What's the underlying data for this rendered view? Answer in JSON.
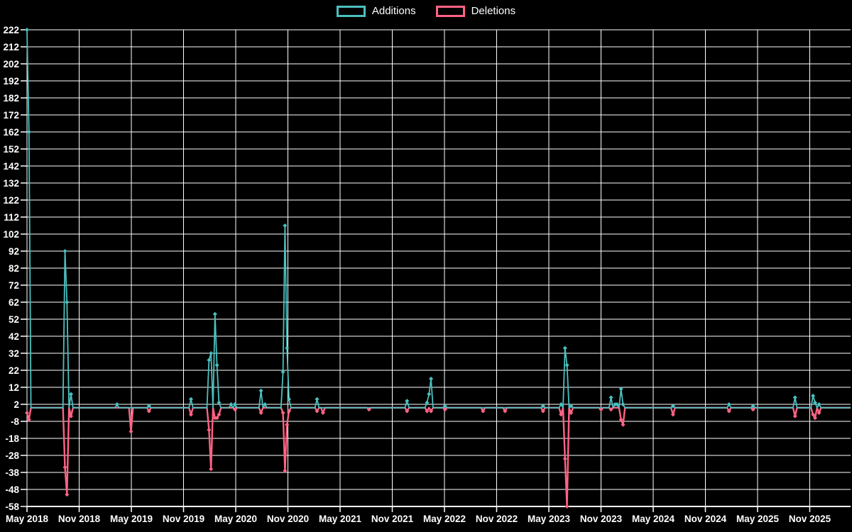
{
  "legend": {
    "items": [
      {
        "label": "Additions",
        "color": "#4bc0c0"
      },
      {
        "label": "Deletions",
        "color": "#ff6384"
      }
    ]
  },
  "colors": {
    "background": "#000000",
    "grid": "#ffffff",
    "text": "#ffffff",
    "additions": "#4bc0c0",
    "deletions": "#ff6384"
  },
  "chart_data": {
    "type": "line",
    "title": "",
    "legend_position": "top",
    "grid": true,
    "x_axis": {
      "tick_labels": [
        "May 2018",
        "Nov 2018",
        "May 2019",
        "Nov 2019",
        "May 2020",
        "Nov 2020",
        "May 2021",
        "Nov 2021",
        "May 2022",
        "Nov 2022",
        "May 2023",
        "Nov 2023",
        "May 2024",
        "Nov 2024",
        "May 2025",
        "Nov 2025"
      ],
      "tick_interval": "6 months",
      "point_interval": "1 week"
    },
    "y_axis": {
      "min": -58,
      "max": 222,
      "step": 10,
      "tick_labels": [
        "222",
        "212",
        "202",
        "192",
        "182",
        "172",
        "162",
        "152",
        "142",
        "132",
        "122",
        "112",
        "102",
        "92",
        "82",
        "72",
        "62",
        "52",
        "42",
        "32",
        "22",
        "12",
        "2",
        "-8",
        "-18",
        "-28",
        "-38",
        "-48",
        "-58"
      ]
    },
    "weeks_total": 412,
    "baseline_value": 0,
    "spike_key": "week index from first data point (early May 2018); all unlisted weeks are 0",
    "series": [
      {
        "name": "Additions",
        "color": "#4bc0c0",
        "spikes": {
          "0": 222,
          "1": 162,
          "19": 92,
          "20": 62,
          "22": 8,
          "45": 2,
          "61": 1,
          "82": 5,
          "91": 28,
          "92": 32,
          "94": 55,
          "95": 25,
          "96": 3,
          "102": 2,
          "104": 2,
          "117": 10,
          "119": 2,
          "128": 21,
          "129": 107,
          "130": 35,
          "131": 5,
          "145": 5,
          "190": 4,
          "200": 3,
          "201": 8,
          "202": 17,
          "209": 1,
          "258": 1,
          "267": 2,
          "269": 35,
          "270": 25,
          "272": 1,
          "292": 6,
          "294": 2,
          "295": 2,
          "297": 11,
          "298": 2,
          "323": 1,
          "351": 2,
          "363": 1,
          "384": 6,
          "393": 7,
          "394": 3,
          "396": 2
        }
      },
      {
        "name": "Deletions",
        "color": "#ff6384",
        "spikes": {
          "0": -3,
          "1": -7,
          "19": -35,
          "20": -51,
          "22": -5,
          "52": -14,
          "61": -2,
          "82": -4,
          "91": -13,
          "92": -36,
          "94": -6,
          "95": -6,
          "96": -4,
          "104": -1,
          "117": -3,
          "128": -3,
          "129": -37,
          "130": -10,
          "131": -2,
          "145": -2,
          "148": -3,
          "171": -1,
          "190": -2,
          "200": -2,
          "202": -2,
          "209": -1,
          "228": -2,
          "239": -2,
          "258": -2,
          "267": -4,
          "269": -30,
          "270": -58,
          "272": -3,
          "287": -1,
          "292": -1,
          "297": -7,
          "298": -10,
          "323": -4,
          "351": -2,
          "363": -1,
          "384": -5,
          "393": -4,
          "394": -6,
          "396": -3
        }
      }
    ]
  }
}
